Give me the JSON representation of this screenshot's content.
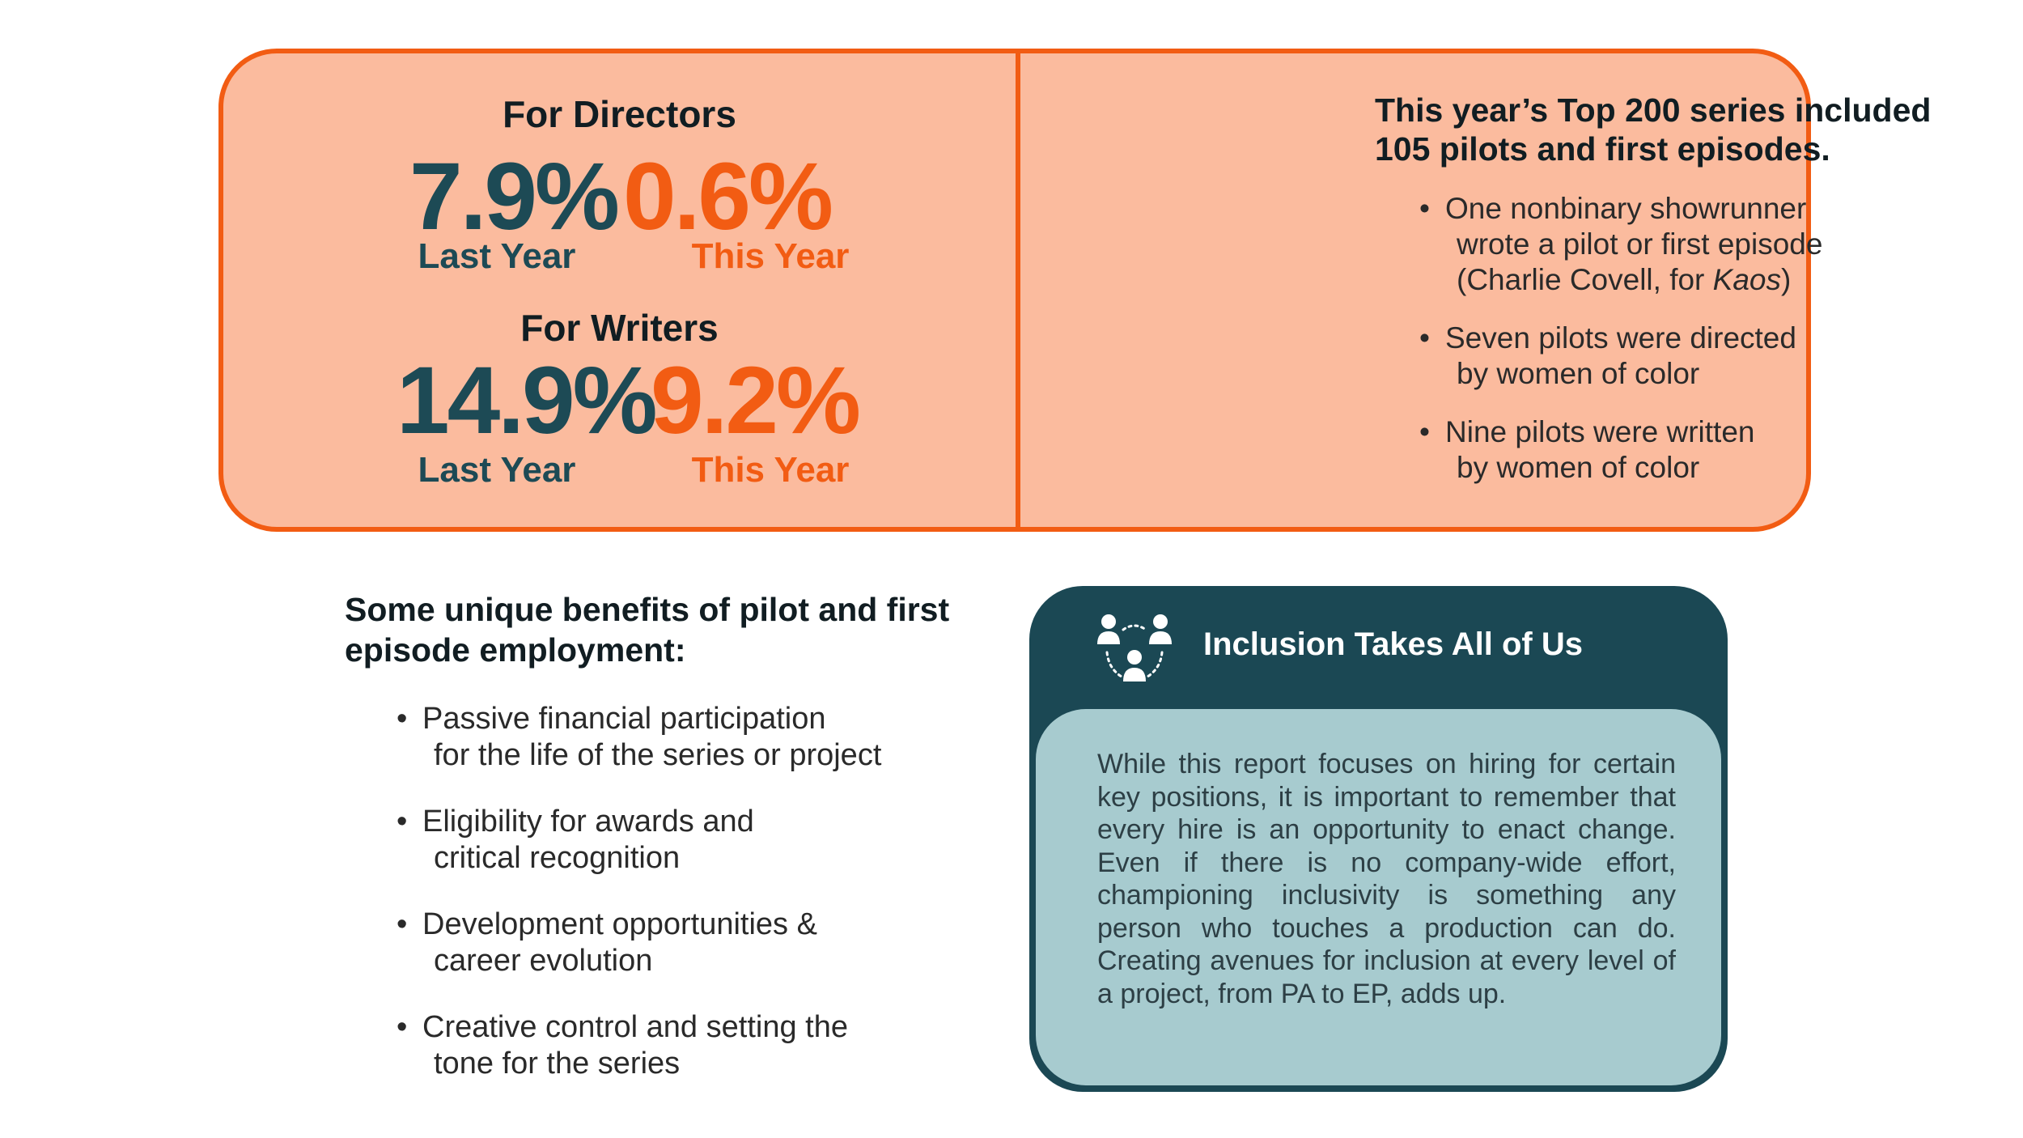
{
  "stats_panel": {
    "directors": {
      "heading": "For Directors",
      "last_year_value": "7.9%",
      "last_year_label": "Last Year",
      "this_year_value": "0.6%",
      "this_year_label": "This Year"
    },
    "writers": {
      "heading": "For Writers",
      "last_year_value": "14.9%",
      "last_year_label": "Last Year",
      "this_year_value": "9.2%",
      "this_year_label": "This Year"
    },
    "pilots": {
      "title_line1": "This year’s Top 200 series included",
      "title_line2": "105 pilots and first episodes.",
      "bullets": [
        {
          "line1": "One nonbinary showrunner",
          "line2": "wrote a pilot or first episode",
          "line3_prefix": "(Charlie Covell, for ",
          "line3_italic": "Kaos",
          "line3_suffix": ")"
        },
        {
          "line1": "Seven pilots were directed",
          "line2": "by women of color"
        },
        {
          "line1": "Nine pilots were written",
          "line2": "by women of color"
        }
      ]
    }
  },
  "benefits": {
    "title_line1": "Some unique benefits of pilot and first",
    "title_line2": "episode employment:",
    "items": [
      {
        "line1": "Passive financial participation",
        "line2": "for the life of the series or project"
      },
      {
        "line1": "Eligibility for awards and",
        "line2": "critical recognition"
      },
      {
        "line1": "Development opportunities &",
        "line2": "career evolution"
      },
      {
        "line1": "Creative control and setting the",
        "line2": "tone for the series"
      }
    ]
  },
  "inclusion": {
    "icon": "people-group-icon",
    "title": "Inclusion Takes All of Us",
    "body": "While this report focuses on hiring for certain key positions, it is important to remember that every hire is an opportunity to enact change. Even if there is no company-wide effort, championing inclusivity is something any person who touches a production can do. Creating avenues for inclusion at every level of a project, from PA to EP, adds up."
  },
  "colors": {
    "orange": "#f25c13",
    "peach": "#fbbb9e",
    "teal_dark": "#1b4854",
    "teal_light": "#a7cbcf"
  }
}
